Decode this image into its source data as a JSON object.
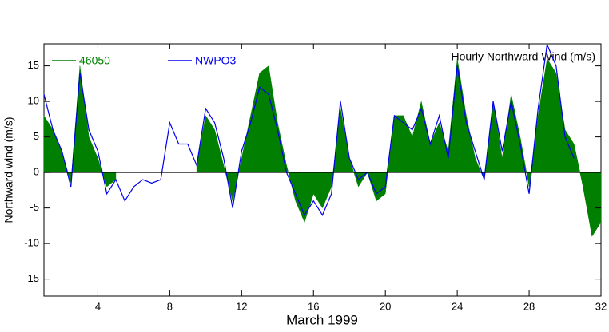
{
  "chart_data": {
    "type": "area_line",
    "title": "Hourly Northward Wind (m/s)",
    "xlabel": "March 1999",
    "ylabel": "Northward wind (m/s)",
    "legend": "upper left",
    "x": [
      1,
      1.5,
      2,
      2.5,
      3,
      3.5,
      4,
      4.5,
      5,
      5.5,
      6,
      6.5,
      7,
      7.5,
      8,
      8.5,
      9,
      9.5,
      10,
      10.5,
      11,
      11.5,
      12,
      12.5,
      13,
      13.5,
      14,
      14.5,
      15,
      15.5,
      16,
      16.5,
      17,
      17.5,
      18,
      18.5,
      19,
      19.5,
      20,
      20.5,
      21,
      21.5,
      22,
      22.5,
      23,
      23.5,
      24,
      24.5,
      25,
      25.5,
      26,
      26.5,
      27,
      27.5,
      28,
      28.5,
      29,
      29.5,
      30,
      30.5,
      31,
      31.5,
      32
    ],
    "series": [
      {
        "name": "46050",
        "color": "#007f00",
        "style": "area",
        "values": [
          8,
          6,
          3,
          -1.5,
          15,
          5,
          2,
          -2,
          -1,
          null,
          null,
          null,
          null,
          null,
          null,
          null,
          null,
          1,
          8,
          6,
          1,
          -4,
          2,
          8,
          14,
          15,
          7,
          1,
          -4,
          -7,
          -3,
          -5,
          -2,
          9,
          2,
          -2,
          0,
          -4,
          -3,
          8,
          8,
          5,
          10,
          4,
          7,
          3,
          16,
          8,
          2,
          -1,
          10,
          2,
          11,
          5,
          -2,
          8,
          16,
          14,
          6,
          4,
          -2,
          -9,
          -7
        ]
      },
      {
        "name": "NWPO3",
        "color": "#0000ee",
        "style": "line",
        "values": [
          11,
          6,
          3,
          -2,
          14,
          6,
          3,
          -3,
          -1,
          -4,
          -2,
          -1,
          -1.5,
          -1,
          7,
          4,
          4,
          1,
          9,
          7,
          2,
          -5,
          3,
          7,
          12,
          11,
          6,
          0,
          -3,
          -6,
          -4,
          -6,
          -3,
          10,
          2,
          -1,
          0,
          -3,
          -2,
          8,
          7,
          6,
          9,
          4,
          8,
          2,
          15,
          7,
          3,
          -1,
          10,
          3,
          10,
          4,
          -3,
          9,
          18,
          15,
          5,
          2,
          null,
          null,
          null
        ]
      }
    ],
    "xlim": [
      1,
      32
    ],
    "xticks": [
      4,
      8,
      12,
      16,
      20,
      24,
      28,
      32
    ],
    "ylim": [
      -17.4,
      18.1
    ],
    "yticks": [
      -15,
      -10,
      -5,
      0,
      5,
      10,
      15
    ]
  }
}
